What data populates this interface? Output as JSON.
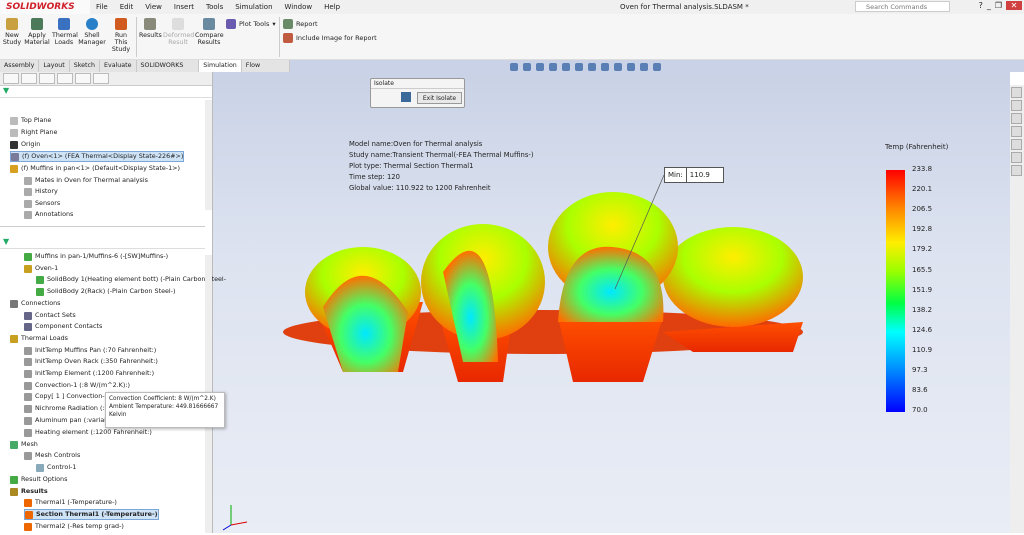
{
  "app": {
    "logo": "SOLIDWORKS",
    "title": "Oven for Thermal analysis.SLDASM *",
    "search_placeholder": "Search Commands"
  },
  "menu": [
    "File",
    "Edit",
    "View",
    "Insert",
    "Tools",
    "Simulation",
    "Window",
    "Help"
  ],
  "ribbon": {
    "new_study": "New Study",
    "apply_material": "Apply Material",
    "thermal_loads": "Thermal Loads",
    "shell_manager": "Shell Manager",
    "run_study": "Run This Study",
    "results": "Results",
    "deformed_result": "Deformed Result",
    "compare_results": "Compare Results",
    "plot_tools": "Plot Tools",
    "report": "Report",
    "include_image": "Include Image for Report"
  },
  "tabs": [
    "Assembly",
    "Layout",
    "Sketch",
    "Evaluate",
    "SOLIDWORKS Add-Ins",
    "Simulation",
    "Flow Simulation"
  ],
  "active_tab": "Simulation",
  "feature_tree": [
    "Top Plane",
    "Right Plane",
    "Origin",
    "(f) Oven<1> (FEA Thermal<Display State-226#>)",
    "(f) Muffins in pan<1> (Default<Display State-1>)",
    "Mates in Oven for Thermal analysis",
    "History",
    "Sensors",
    "Annotations"
  ],
  "sim_tree": [
    "Muffins in pan-1/Muffins-6 (-[SW]Muffins-)",
    "Oven-1",
    "SolidBody 1(Heating element bott) (-Plain Carbon Steel-",
    "SolidBody 2(Rack) (-Plain Carbon Steel-)",
    "Connections",
    "Contact Sets",
    "Component Contacts",
    "Thermal Loads",
    "InitTemp Muffins Pan (:70 Fahrenheit:)",
    "InitTemp Oven Rack (:350 Fahrenheit:)",
    "InitTemp Element (:1200 Fahrenheit:)",
    "Convection-1 (:8 W/(m^2.K):)",
    "Copy[ 1 ] Convection-1",
    "Nichrome Radiation (:va",
    "Aluminum pan (:variabl",
    "Heating element (:1200 Fahrenheit:)",
    "Mesh",
    "Mesh Controls",
    "Control-1",
    "Result Options",
    "Results",
    "Thermal1 (-Temperature-)",
    "Section Thermal1 (-Temperature-)",
    "Thermal2 (-Res temp grad-)"
  ],
  "tooltip": [
    "Convection Coefficient: 8 W/(m^2.K)",
    "Ambient Temperature: 449.81666667",
    "Kelvin"
  ],
  "isolate": {
    "title": "Isolate",
    "exit": "Exit Isolate"
  },
  "plot_info": [
    "Model name:Oven for Thermal analysis",
    "Study name:Transient Thermal(-FEA Thermal Muffins-)",
    "Plot type: Thermal Section Thermal1",
    "Time step: 120",
    "Global value: 110.922 to 1200 Fahrenheit"
  ],
  "probe": {
    "label": "Min:",
    "value": "110.9"
  },
  "legend": {
    "title": "Temp (Fahrenheit)",
    "values": [
      "233.8",
      "220.1",
      "206.5",
      "192.8",
      "179.2",
      "165.5",
      "151.9",
      "138.2",
      "124.6",
      "110.9",
      "97.3",
      "83.6",
      "70.0"
    ]
  }
}
